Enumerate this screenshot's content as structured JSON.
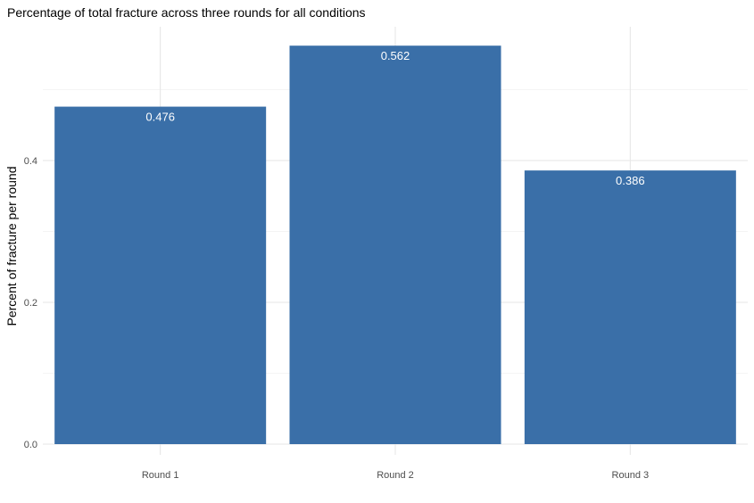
{
  "chart_data": {
    "type": "bar",
    "title": "Percentage of total fracture across three rounds for all conditions",
    "xlabel": "",
    "ylabel": "Percent of fracture per round",
    "categories": [
      "Round 1",
      "Round 2",
      "Round 3"
    ],
    "values": [
      0.476,
      0.562,
      0.386
    ],
    "value_labels": [
      "0.476",
      "0.562",
      "0.386"
    ],
    "ylim": [
      0,
      0.59
    ],
    "y_ticks": [
      0.0,
      0.2,
      0.4
    ],
    "y_tick_labels": [
      "0.0",
      "0.2",
      "0.4"
    ],
    "y_minor_ticks": [
      0.1,
      0.3,
      0.5
    ],
    "grid": true,
    "bar_color": "#3a6fa8",
    "legend": "none"
  }
}
